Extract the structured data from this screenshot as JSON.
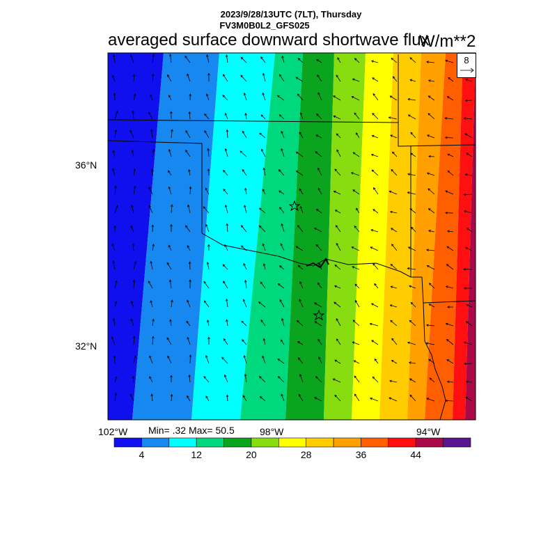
{
  "header": {
    "line1": "2023/9/28/13UTC (7LT), Thursday",
    "line2": "FV3M0B0L2_GFS025",
    "title": "averaged surface downward shortwave flux",
    "units": "W/m**2"
  },
  "map": {
    "lat_labels": [
      "36°N",
      "32°N"
    ],
    "lon_labels": [
      "102°W",
      "98°W",
      "94°W"
    ],
    "minmax": "Min= .32 Max= 50.5",
    "reference_vector": {
      "value": "8",
      "icon": "arrow-right-icon"
    },
    "station_markers": 2
  },
  "colorbar": {
    "colors": [
      "#1010ee",
      "#1688f0",
      "#00ffff",
      "#00d87e",
      "#0aa41e",
      "#88dd10",
      "#ffff00",
      "#ffcc00",
      "#ffa000",
      "#ff5f00",
      "#ff1010",
      "#aa0848",
      "#5a1590"
    ],
    "labels": [
      "4",
      "12",
      "20",
      "28",
      "36",
      "44"
    ]
  }
}
